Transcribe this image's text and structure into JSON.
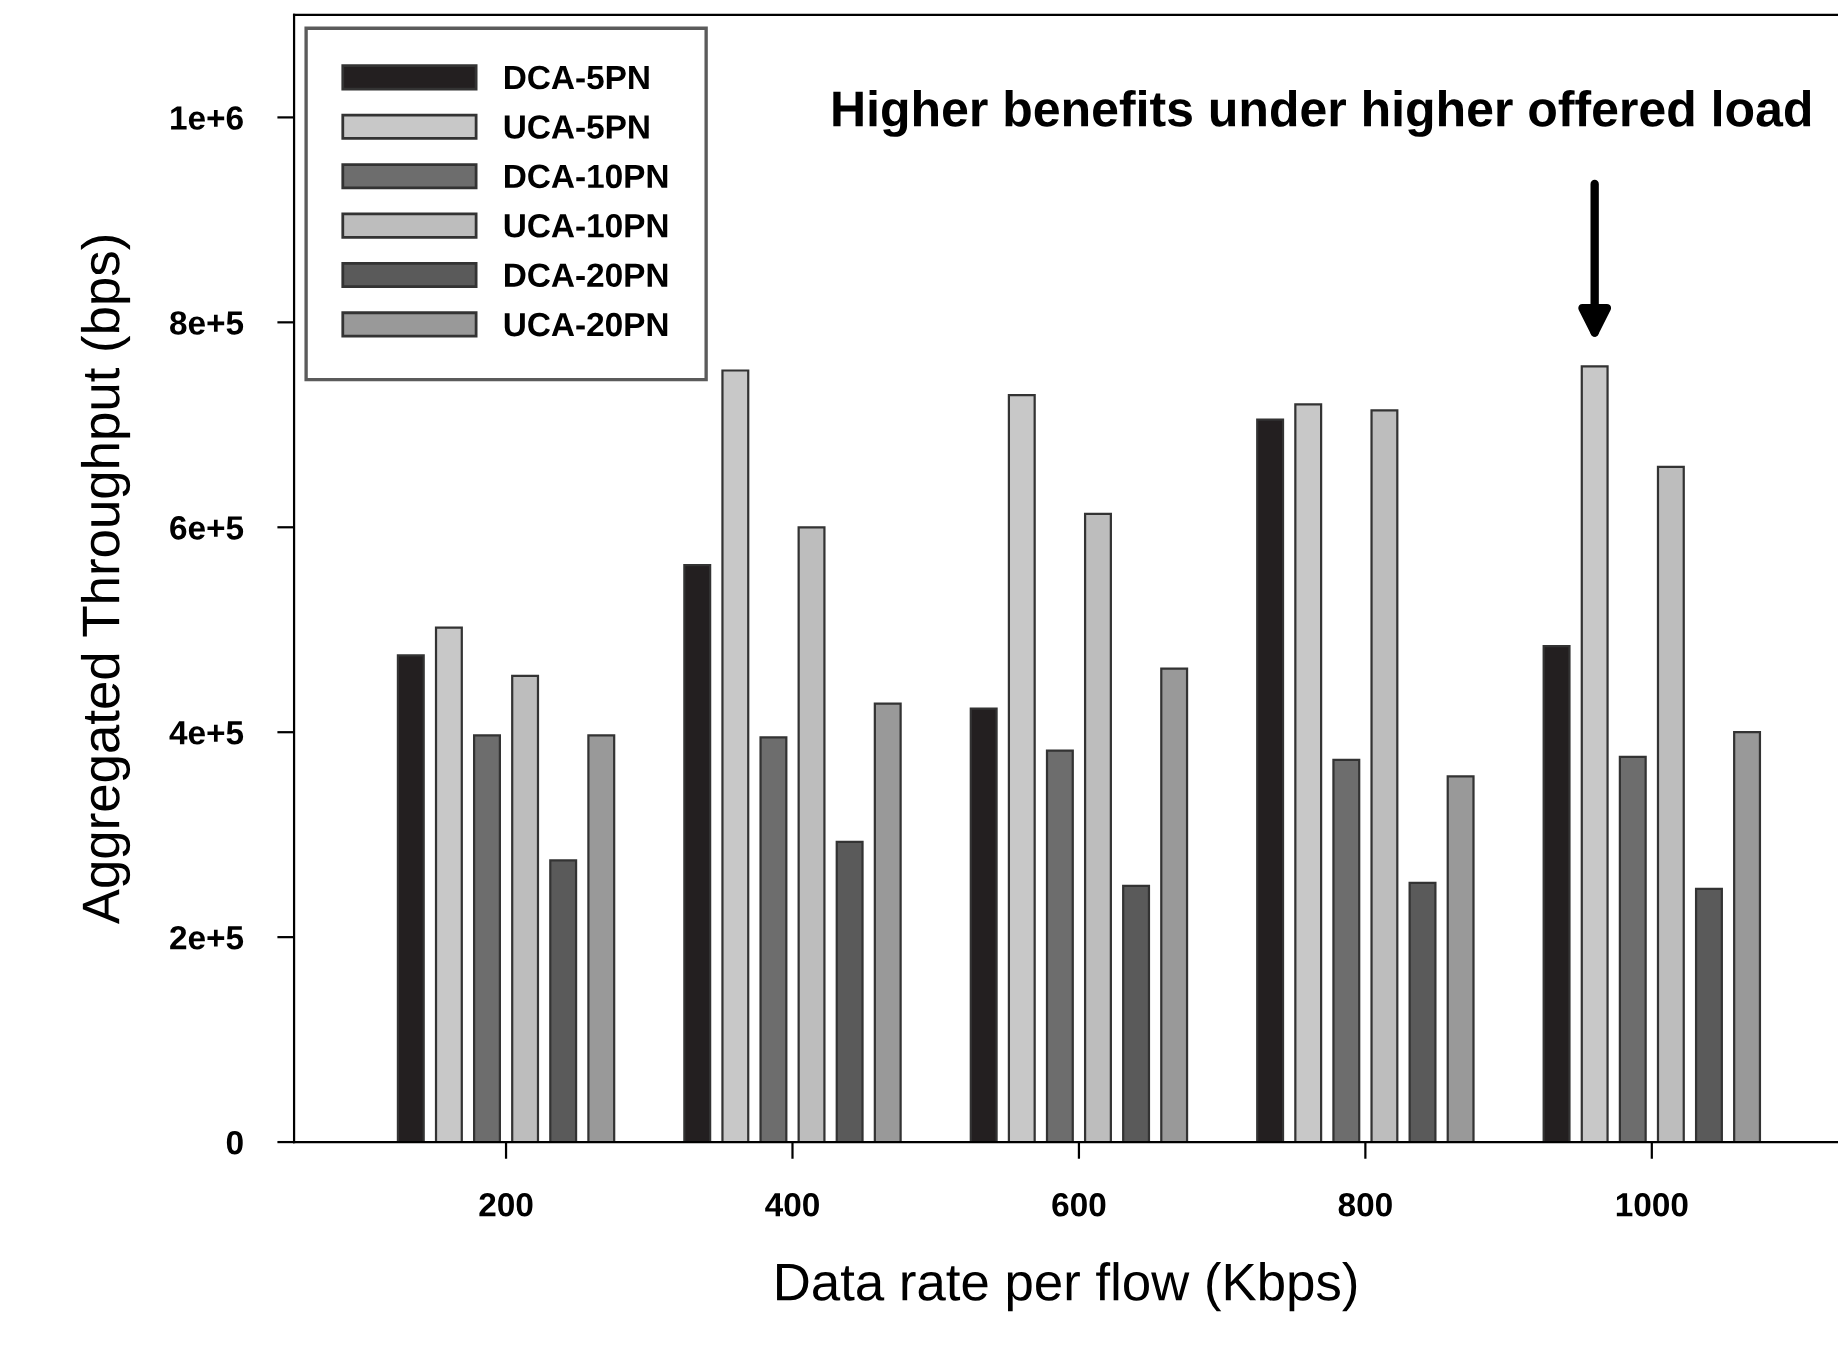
{
  "chart_data": {
    "type": "bar",
    "xlabel": "Data rate per flow (Kbps)",
    "ylabel": "Aggregated Throughput (bps)",
    "categories": [
      "200",
      "400",
      "600",
      "800",
      "1000"
    ],
    "series": [
      {
        "name": "DCA-5PN",
        "color": "#231f20",
        "values": [
          475000,
          563000,
          423000,
          705000,
          484000
        ]
      },
      {
        "name": "UCA-5PN",
        "color": "#c8c8c8",
        "values": [
          502000,
          753000,
          729000,
          720000,
          757000
        ]
      },
      {
        "name": "DCA-10PN",
        "color": "#6d6d6d",
        "values": [
          397000,
          395000,
          382000,
          373000,
          376000
        ]
      },
      {
        "name": "UCA-10PN",
        "color": "#bdbdbd",
        "values": [
          455000,
          600000,
          613000,
          714000,
          659000
        ]
      },
      {
        "name": "DCA-20PN",
        "color": "#5a5a5a",
        "values": [
          275000,
          293000,
          250000,
          253000,
          247000
        ]
      },
      {
        "name": "UCA-20PN",
        "color": "#999999",
        "values": [
          397000,
          428000,
          462000,
          357000,
          400000
        ]
      }
    ],
    "ylim": [
      0,
      1100000
    ],
    "yticks": [
      {
        "value": 0,
        "label": "0"
      },
      {
        "value": 200000,
        "label": "2e+5"
      },
      {
        "value": 400000,
        "label": "4e+5"
      },
      {
        "value": 600000,
        "label": "6e+5"
      },
      {
        "value": 800000,
        "label": "8e+5"
      },
      {
        "value": 1000000,
        "label": "1e+6"
      }
    ],
    "annotations": [
      "Higher benefits under higher offered load"
    ],
    "legend": "top left",
    "grid": false
  }
}
